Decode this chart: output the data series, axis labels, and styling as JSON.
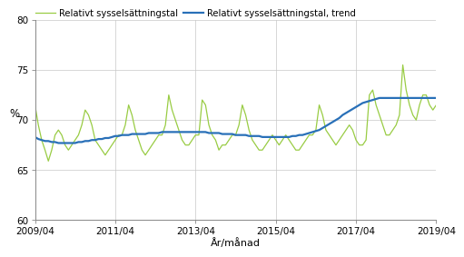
{
  "title": "",
  "ylabel": "%",
  "xlabel": "År/månad",
  "legend_line1": "Relativt sysselsättningstal",
  "legend_line2": "Relativt sysselsättningstal, trend",
  "line_color": "#99cc44",
  "trend_color": "#2970b8",
  "ylim": [
    60,
    80
  ],
  "yticks": [
    60,
    65,
    70,
    75,
    80
  ],
  "xtick_labels": [
    "2009/04",
    "2011/04",
    "2013/04",
    "2015/04",
    "2017/04",
    "2019/04"
  ],
  "background_color": "#ffffff",
  "grid_color": "#c8c8c8",
  "raw": [
    71.5,
    69.5,
    68.0,
    67.0,
    65.9,
    67.0,
    68.5,
    69.0,
    68.5,
    67.5,
    67.0,
    67.5,
    68.0,
    68.5,
    69.5,
    71.0,
    70.5,
    69.5,
    68.0,
    67.5,
    67.0,
    66.5,
    67.0,
    67.5,
    68.0,
    68.5,
    68.5,
    69.5,
    71.5,
    70.5,
    69.0,
    68.0,
    67.0,
    66.5,
    67.0,
    67.5,
    68.0,
    68.5,
    68.5,
    69.5,
    72.5,
    71.0,
    70.0,
    69.0,
    68.0,
    67.5,
    67.5,
    68.0,
    68.5,
    68.5,
    72.0,
    71.5,
    69.5,
    68.5,
    68.0,
    67.0,
    67.5,
    67.5,
    68.0,
    68.5,
    68.5,
    69.5,
    71.5,
    70.5,
    69.0,
    68.0,
    67.5,
    67.0,
    67.0,
    67.5,
    68.0,
    68.5,
    68.0,
    67.5,
    68.0,
    68.5,
    68.0,
    67.5,
    67.0,
    67.0,
    67.5,
    68.0,
    68.5,
    68.5,
    69.0,
    71.5,
    70.5,
    69.0,
    68.5,
    68.0,
    67.5,
    68.0,
    68.5,
    69.0,
    69.5,
    69.0,
    68.0,
    67.5,
    67.5,
    68.0,
    72.5,
    73.0,
    71.5,
    70.5,
    69.5,
    68.5,
    68.5,
    69.0,
    69.5,
    70.5,
    75.5,
    73.0,
    71.5,
    70.5,
    70.0,
    71.5,
    72.5,
    72.5,
    71.5,
    71.0,
    71.5
  ],
  "trend": [
    68.3,
    68.1,
    68.0,
    67.9,
    67.9,
    67.8,
    67.8,
    67.7,
    67.7,
    67.7,
    67.7,
    67.7,
    67.7,
    67.8,
    67.8,
    67.9,
    67.9,
    68.0,
    68.0,
    68.1,
    68.1,
    68.2,
    68.2,
    68.3,
    68.4,
    68.4,
    68.5,
    68.5,
    68.5,
    68.6,
    68.6,
    68.6,
    68.6,
    68.6,
    68.7,
    68.7,
    68.7,
    68.7,
    68.8,
    68.8,
    68.8,
    68.8,
    68.8,
    68.8,
    68.8,
    68.8,
    68.8,
    68.8,
    68.8,
    68.8,
    68.8,
    68.8,
    68.7,
    68.7,
    68.7,
    68.7,
    68.6,
    68.6,
    68.6,
    68.6,
    68.5,
    68.5,
    68.5,
    68.5,
    68.4,
    68.4,
    68.4,
    68.4,
    68.3,
    68.3,
    68.3,
    68.3,
    68.3,
    68.3,
    68.3,
    68.3,
    68.3,
    68.4,
    68.4,
    68.5,
    68.5,
    68.6,
    68.7,
    68.8,
    68.9,
    69.0,
    69.2,
    69.4,
    69.6,
    69.8,
    70.0,
    70.2,
    70.5,
    70.7,
    70.9,
    71.1,
    71.3,
    71.5,
    71.7,
    71.8,
    71.9,
    72.0,
    72.1,
    72.2,
    72.2,
    72.2,
    72.2,
    72.2,
    72.2,
    72.2,
    72.2,
    72.2,
    72.2,
    72.2,
    72.2,
    72.2,
    72.2,
    72.2,
    72.2,
    72.2,
    72.2
  ]
}
